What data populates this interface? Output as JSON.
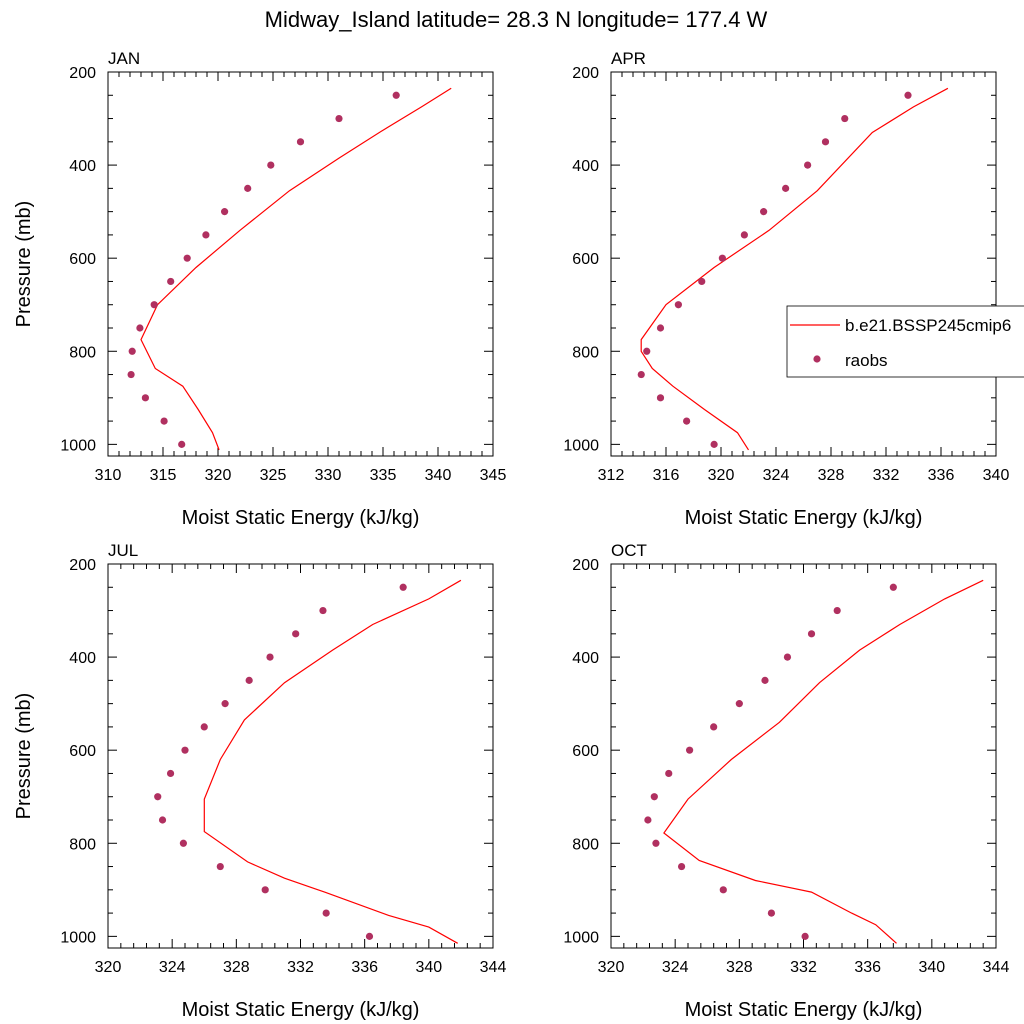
{
  "title": "Midway_Island  latitude= 28.3 N longitude= 177.4 W",
  "colors": {
    "model": "#ff0000",
    "obs": "#b03060"
  },
  "legend": {
    "model_label": "b.e21.BSSP245cmip6",
    "obs_label": "raobs"
  },
  "chart_data": [
    {
      "type": "line",
      "panel": "JAN",
      "xlabel": "Moist Static Energy (kJ/kg)",
      "ylabel": "Pressure (mb)",
      "xlim": [
        310,
        345
      ],
      "ylim": [
        200,
        1025
      ],
      "y_reversed": true,
      "xticks": [
        310,
        315,
        320,
        325,
        330,
        335,
        340,
        345
      ],
      "yticks": [
        200,
        400,
        600,
        800,
        1000
      ],
      "series": [
        {
          "name": "b.e21.BSSP245cmip6",
          "type": "line",
          "x": [
            320.1,
            319.5,
            318.2,
            316.8,
            314.3,
            313.0,
            314.5,
            318.0,
            322.0,
            326.5,
            331.0,
            335.0,
            338.5,
            341.2
          ],
          "y": [
            1012,
            975,
            925,
            875,
            837,
            775,
            700,
            620,
            540,
            455,
            385,
            325,
            275,
            235
          ]
        },
        {
          "name": "raobs",
          "type": "scatter",
          "x": [
            316.7,
            315.1,
            313.4,
            312.1,
            312.2,
            312.9,
            314.2,
            315.7,
            317.2,
            318.9,
            320.6,
            322.7,
            324.8,
            327.5,
            331.0,
            336.2
          ],
          "y": [
            1000,
            950,
            900,
            850,
            800,
            750,
            700,
            650,
            600,
            550,
            500,
            450,
            400,
            350,
            300,
            250
          ]
        }
      ]
    },
    {
      "type": "line",
      "panel": "APR",
      "xlabel": "Moist Static Energy (kJ/kg)",
      "ylabel": "",
      "xlim": [
        312,
        340
      ],
      "ylim": [
        200,
        1025
      ],
      "y_reversed": true,
      "xticks": [
        312,
        316,
        320,
        324,
        328,
        332,
        336,
        340
      ],
      "yticks": [
        200,
        400,
        600,
        800,
        1000
      ],
      "series": [
        {
          "name": "b.e21.BSSP245cmip6",
          "type": "line",
          "x": [
            322.0,
            321.2,
            318.8,
            316.5,
            315.0,
            314.2,
            314.2,
            316.0,
            319.5,
            323.5,
            327.0,
            331.0,
            334.0,
            336.5
          ],
          "y": [
            1012,
            975,
            925,
            875,
            837,
            800,
            775,
            700,
            620,
            540,
            455,
            330,
            275,
            235
          ]
        },
        {
          "name": "raobs",
          "type": "scatter",
          "x": [
            319.5,
            317.5,
            315.6,
            314.2,
            314.6,
            315.6,
            316.9,
            318.6,
            320.1,
            321.7,
            323.1,
            324.7,
            326.3,
            327.6,
            329.0,
            333.6
          ],
          "y": [
            1000,
            950,
            900,
            850,
            800,
            750,
            700,
            650,
            600,
            550,
            500,
            450,
            400,
            350,
            300,
            250
          ]
        }
      ]
    },
    {
      "type": "line",
      "panel": "JUL",
      "xlabel": "Moist Static Energy (kJ/kg)",
      "ylabel": "Pressure (mb)",
      "xlim": [
        320,
        344
      ],
      "ylim": [
        200,
        1025
      ],
      "y_reversed": true,
      "xticks": [
        320,
        324,
        328,
        332,
        336,
        340,
        344
      ],
      "yticks": [
        200,
        400,
        600,
        800,
        1000
      ],
      "series": [
        {
          "name": "b.e21.BSSP245cmip6",
          "type": "line",
          "x": [
            341.8,
            340.0,
            337.5,
            333.5,
            331.0,
            328.7,
            326.0,
            326.0,
            327.0,
            328.5,
            331.0,
            334.0,
            336.5,
            340.0,
            342.0
          ],
          "y": [
            1015,
            980,
            955,
            905,
            875,
            840,
            775,
            705,
            620,
            535,
            455,
            385,
            330,
            275,
            235
          ]
        },
        {
          "name": "raobs",
          "type": "scatter",
          "x": [
            336.3,
            333.6,
            329.8,
            327.0,
            324.7,
            323.4,
            323.1,
            323.9,
            324.8,
            326.0,
            327.3,
            328.8,
            330.1,
            331.7,
            333.4,
            338.4
          ],
          "y": [
            1000,
            950,
            900,
            850,
            800,
            750,
            700,
            650,
            600,
            550,
            500,
            450,
            400,
            350,
            300,
            250
          ]
        }
      ]
    },
    {
      "type": "line",
      "panel": "OCT",
      "xlabel": "Moist Static Energy (kJ/kg)",
      "ylabel": "",
      "xlim": [
        320,
        344
      ],
      "ylim": [
        200,
        1025
      ],
      "y_reversed": true,
      "xticks": [
        320,
        324,
        328,
        332,
        336,
        340,
        344
      ],
      "yticks": [
        200,
        400,
        600,
        800,
        1000
      ],
      "series": [
        {
          "name": "b.e21.BSSP245cmip6",
          "type": "line",
          "x": [
            337.8,
            336.5,
            335.0,
            332.5,
            329.0,
            325.5,
            323.3,
            324.8,
            327.5,
            330.5,
            333.0,
            335.5,
            338.0,
            340.8,
            343.2
          ],
          "y": [
            1015,
            975,
            950,
            905,
            880,
            837,
            778,
            705,
            620,
            540,
            455,
            385,
            330,
            275,
            235
          ]
        },
        {
          "name": "raobs",
          "type": "scatter",
          "x": [
            332.1,
            330.0,
            327.0,
            324.4,
            322.8,
            322.3,
            322.7,
            323.6,
            324.9,
            326.4,
            328.0,
            329.6,
            331.0,
            332.5,
            334.1,
            337.6
          ],
          "y": [
            1000,
            950,
            900,
            850,
            800,
            750,
            700,
            650,
            600,
            550,
            500,
            450,
            400,
            350,
            300,
            250
          ]
        }
      ]
    }
  ]
}
